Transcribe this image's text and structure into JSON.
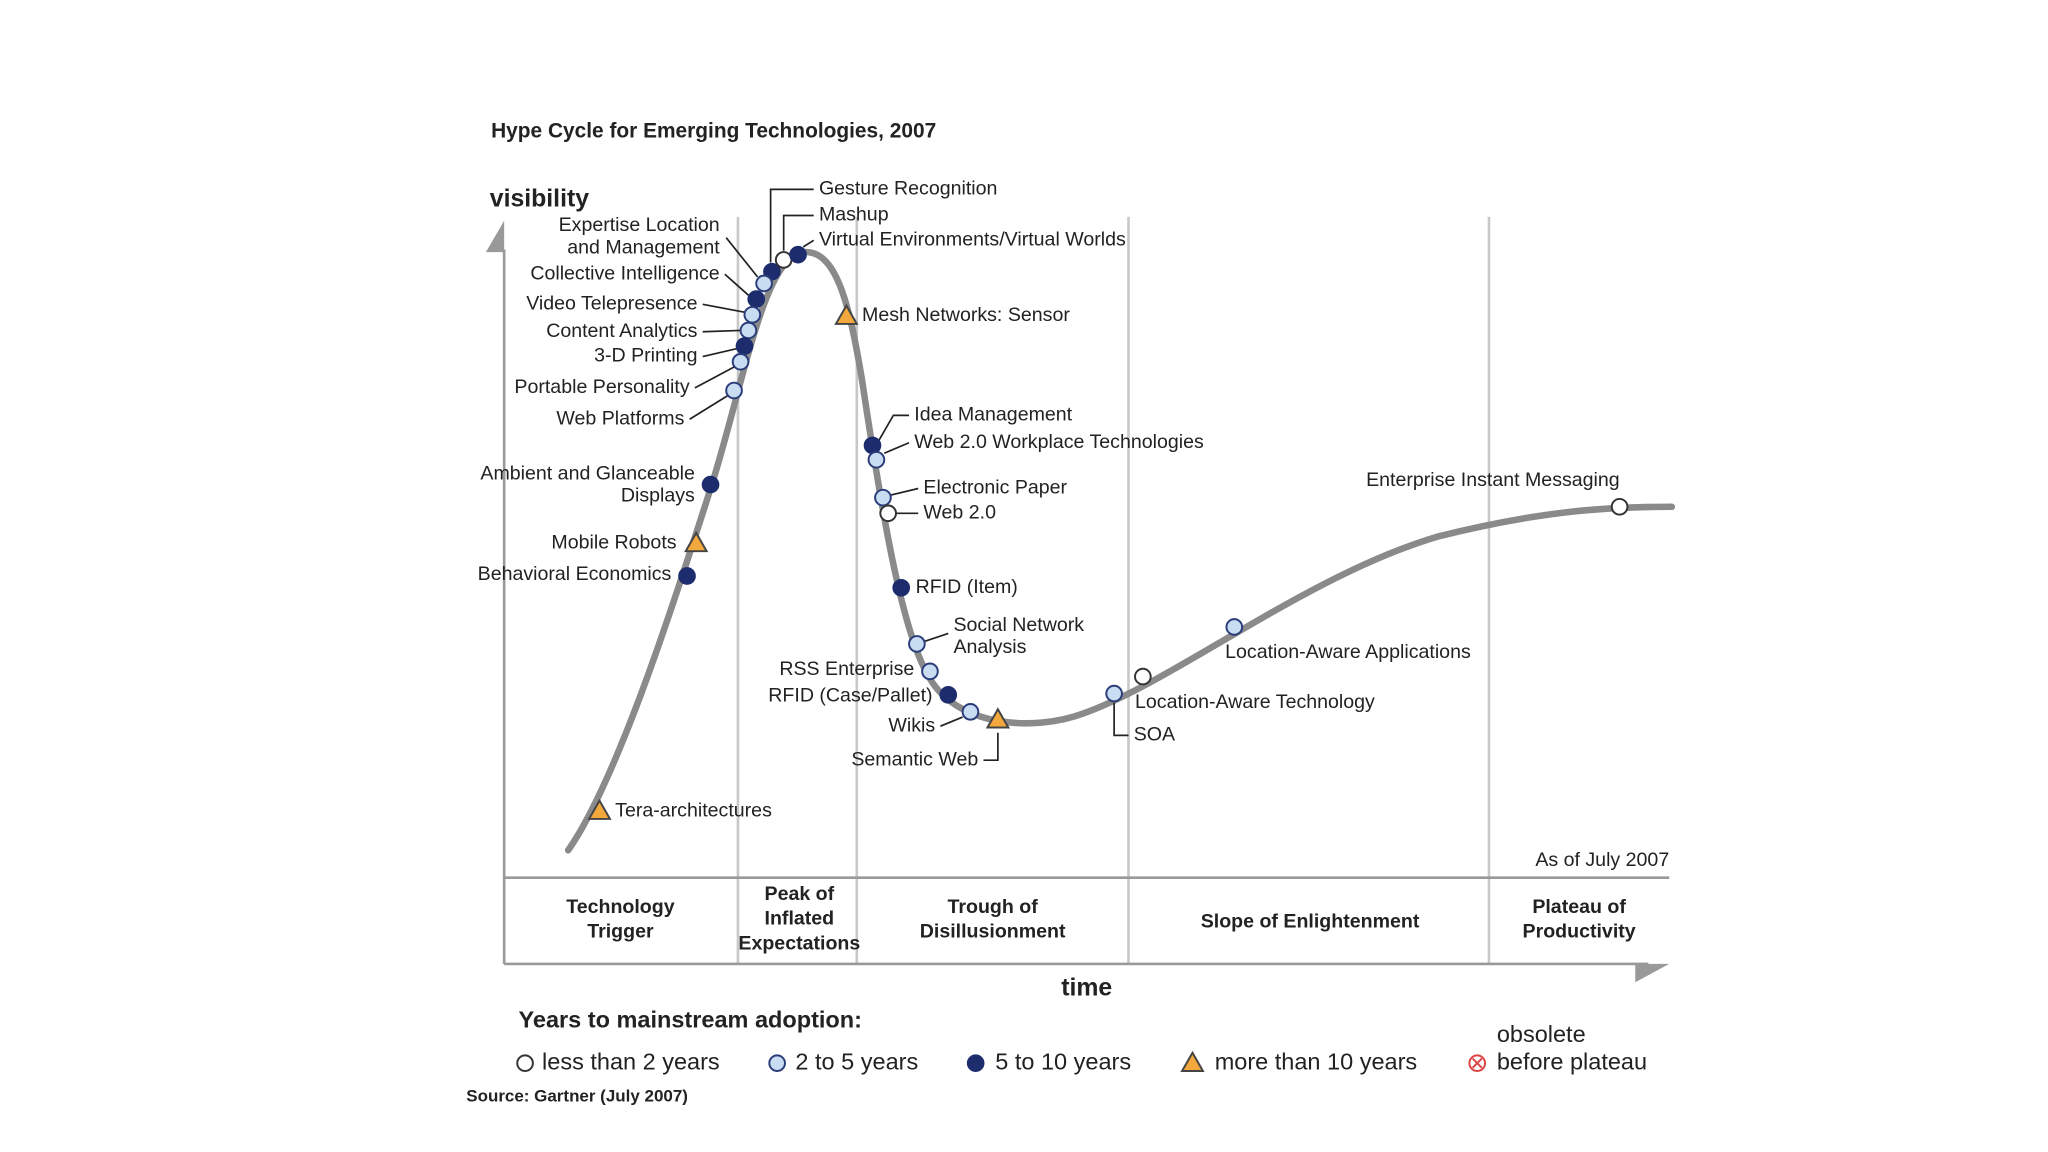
{
  "title": "Hype Cycle for Emerging Technologies, 2007",
  "y_axis_label": "visibility",
  "x_axis_label": "time",
  "as_of": "As of July 2007",
  "phases": [
    [
      "Technology",
      "Trigger"
    ],
    [
      "Peak of",
      "Inflated",
      "Expectations"
    ],
    [
      "Trough of",
      "Disillusionment"
    ],
    [
      "Slope of Enlightenment"
    ],
    [
      "Plateau of",
      "Productivity"
    ]
  ],
  "nodes": [
    {
      "label": [
        "Gesture Recognition"
      ],
      "marker": "dark"
    },
    {
      "label": [
        "Mashup"
      ],
      "marker": "white"
    },
    {
      "label": [
        "Virtual Environments/Virtual Worlds"
      ],
      "marker": "dark"
    },
    {
      "label": [
        "Expertise Location",
        "and Management"
      ],
      "marker": "light"
    },
    {
      "label": [
        "Collective Intelligence"
      ],
      "marker": "dark"
    },
    {
      "label": [
        "Video Telepresence"
      ],
      "marker": "light"
    },
    {
      "label": [
        "Content Analytics"
      ],
      "marker": "light"
    },
    {
      "label": [
        "3-D Printing"
      ],
      "marker": "dark"
    },
    {
      "label": [
        "Portable Personality"
      ],
      "marker": "light"
    },
    {
      "label": [
        "Web Platforms"
      ],
      "marker": "light"
    },
    {
      "label": [
        "Ambient and Glanceable",
        "Displays"
      ],
      "marker": "dark"
    },
    {
      "label": [
        "Mobile Robots"
      ],
      "marker": "triangle"
    },
    {
      "label": [
        "Behavioral Economics"
      ],
      "marker": "dark"
    },
    {
      "label": [
        "Tera-architectures"
      ],
      "marker": "triangle"
    },
    {
      "label": [
        "Mesh Networks: Sensor"
      ],
      "marker": "triangle"
    },
    {
      "label": [
        "Idea Management"
      ],
      "marker": "dark"
    },
    {
      "label": [
        "Web 2.0 Workplace Technologies"
      ],
      "marker": "light"
    },
    {
      "label": [
        "Electronic Paper"
      ],
      "marker": "light"
    },
    {
      "label": [
        "Web 2.0"
      ],
      "marker": "white"
    },
    {
      "label": [
        "RFID (Item)"
      ],
      "marker": "dark"
    },
    {
      "label": [
        "Social Network",
        "Analysis"
      ],
      "marker": "light"
    },
    {
      "label": [
        "RSS Enterprise"
      ],
      "marker": "light"
    },
    {
      "label": [
        "RFID (Case/Pallet)"
      ],
      "marker": "dark"
    },
    {
      "label": [
        "Wikis"
      ],
      "marker": "light"
    },
    {
      "label": [
        "Semantic Web"
      ],
      "marker": "triangle"
    },
    {
      "label": [
        "SOA"
      ],
      "marker": "light"
    },
    {
      "label": [
        "Location-Aware Technology"
      ],
      "marker": "white"
    },
    {
      "label": [
        "Location-Aware Applications"
      ],
      "marker": "light"
    },
    {
      "label": [
        "Enterprise Instant Messaging"
      ],
      "marker": "white"
    }
  ],
  "legend": {
    "title": "Years to mainstream adoption:",
    "items": [
      {
        "label": [
          "less than 2 years"
        ],
        "marker": "white"
      },
      {
        "label": [
          "2 to 5 years"
        ],
        "marker": "light"
      },
      {
        "label": [
          "5 to 10 years"
        ],
        "marker": "dark"
      },
      {
        "label": [
          "more than 10 years"
        ],
        "marker": "triangle"
      },
      {
        "label": [
          "obsolete",
          "before plateau"
        ],
        "marker": "obsolete"
      }
    ]
  },
  "source": "Source: Gartner (July 2007)"
}
